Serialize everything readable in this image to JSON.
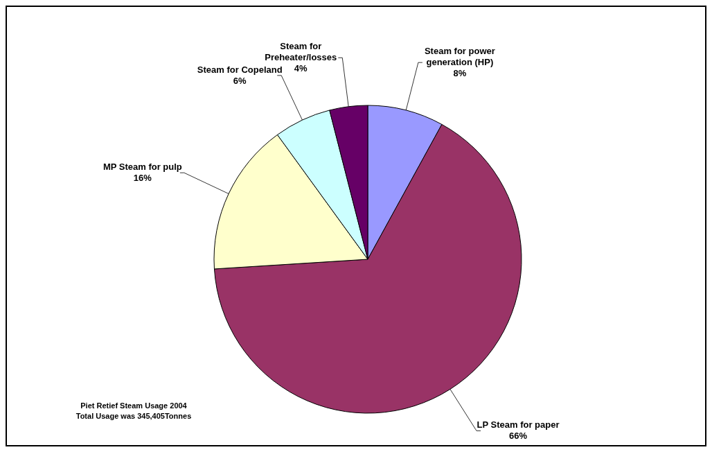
{
  "chart_data": {
    "type": "pie",
    "categories": [
      "Steam for power generation (HP)",
      "LP Steam for paper",
      "MP Steam for pulp",
      "Steam for Copeland",
      "Steam for Preheater/losses"
    ],
    "values": [
      8,
      66,
      16,
      6,
      4
    ],
    "value_labels": [
      "8%",
      "66%",
      "16%",
      "6%",
      "4%"
    ],
    "colors": [
      "#9999ff",
      "#993366",
      "#ffffcc",
      "#ccffff",
      "#660066"
    ],
    "annotations": [
      "Piet Retief Steam Usage 2004",
      "Total Usage was 345,405Tonnes"
    ]
  }
}
